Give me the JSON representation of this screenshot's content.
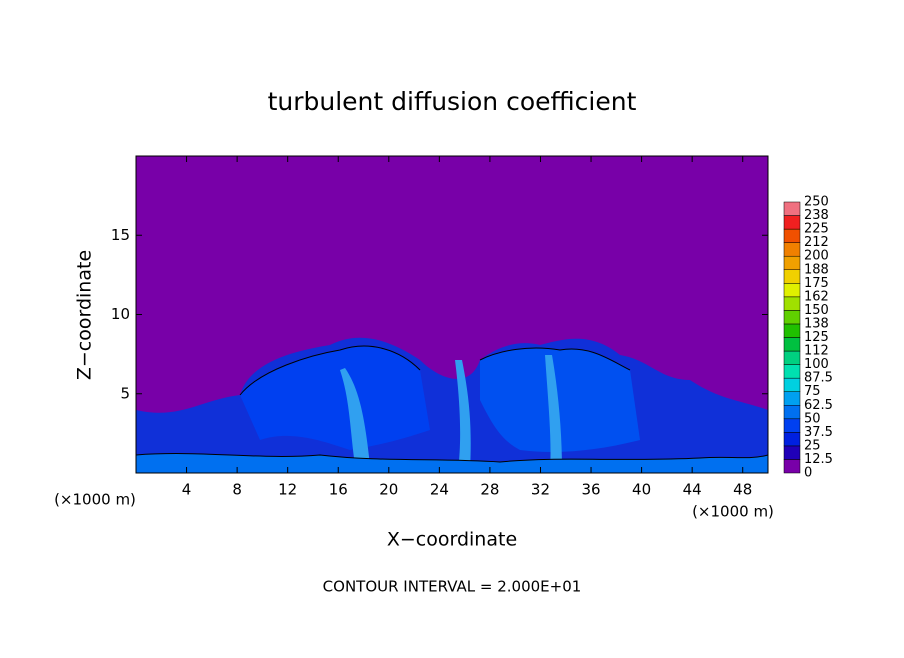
{
  "chart_data": {
    "type": "contour",
    "title": "turbulent diffusion coefficient",
    "xlabel": "X−coordinate",
    "ylabel": "Z−coordinate",
    "x_unit_labels": [
      "(×1000 m)",
      "(×1000 m)"
    ],
    "footer": "CONTOUR INTERVAL = 2.000E+01",
    "xlim": [
      0,
      50
    ],
    "xticks": [
      4,
      8,
      12,
      16,
      20,
      24,
      28,
      32,
      36,
      40,
      44,
      48
    ],
    "ylim": [
      0,
      20
    ],
    "yticks": [
      5,
      10,
      15
    ],
    "background_color": "#7800a8",
    "colorbar": {
      "levels": [
        0,
        12.5,
        25,
        37.5,
        50,
        62.5,
        75,
        87.5,
        100,
        112,
        125,
        138,
        150,
        162,
        175,
        188,
        200,
        212,
        225,
        238,
        250
      ],
      "colors": [
        "#7800a8",
        "#2000b8",
        "#0020e0",
        "#0040f0",
        "#0070f0",
        "#00a0f0",
        "#00d0e0",
        "#00e0b0",
        "#00d080",
        "#00c040",
        "#20c000",
        "#60d000",
        "#a0e000",
        "#e0f000",
        "#f0d000",
        "#f0a000",
        "#f08000",
        "#f05000",
        "#f02020",
        "#f07080"
      ]
    }
  }
}
